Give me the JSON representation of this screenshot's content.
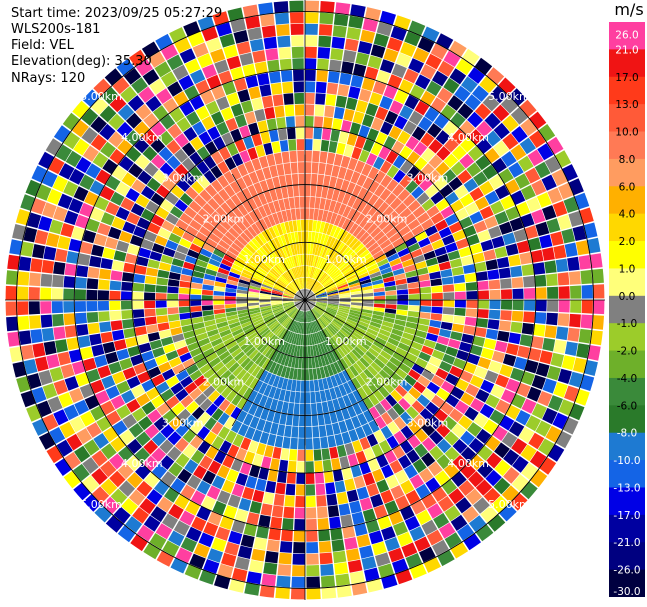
{
  "header": {
    "start_time": "Start time: 2023/09/25 05:27:29",
    "instrument": "WLS200s-181",
    "field": "Field: VEL",
    "elevation": "Elevation(deg): 35.30",
    "nrays": "NRays: 120"
  },
  "colorbar": {
    "unit": "m/s",
    "ticks": [
      "26.0",
      "21.0",
      "17.0",
      "13.0",
      "10.0",
      "8.0",
      "6.0",
      "4.0",
      "2.0",
      "1.0",
      "0.0",
      "-1.0",
      "-2.0",
      "-4.0",
      "-6.0",
      "-8.0",
      "-10.0",
      "-13.0",
      "-17.0",
      "-21.0",
      "-26.0",
      "-30.0"
    ],
    "colors": [
      "#ff3fa0",
      "#f01414",
      "#ff3a1a",
      "#ff5a38",
      "#ff7a55",
      "#ff9c60",
      "#ffb000",
      "#ffd800",
      "#ffff00",
      "#ffff7a",
      "#808080",
      "#9ccc2a",
      "#6eb02a",
      "#3a8a3a",
      "#2a7a2a",
      "#1e7ad2",
      "#1464e6",
      "#0000e6",
      "#0000a0",
      "#000080",
      "#000040"
    ]
  },
  "chart_data": {
    "type": "heatmap",
    "title": "",
    "field": "VEL",
    "unit": "m/s",
    "elevation_deg": 35.3,
    "nrays": 120,
    "range_rings": [
      {
        "label": "1.00km",
        "range_km": 1.0
      },
      {
        "label": "2.00km",
        "range_km": 2.0
      },
      {
        "label": "3.00km",
        "range_km": 3.0
      },
      {
        "label": "4.00km",
        "range_km": 4.0
      },
      {
        "label": "5.00km",
        "range_km": 5.0
      }
    ],
    "max_range_km": 5.2,
    "value_range": [
      -30,
      26
    ],
    "coherent_sectors": [
      {
        "azimuth_deg": [
          290,
          70
        ],
        "range_km": [
          0.2,
          1.4
        ],
        "value": 2.0
      },
      {
        "azimuth_deg": [
          300,
          60
        ],
        "range_km": [
          1.4,
          2.6
        ],
        "value": 9.0
      },
      {
        "azimuth_deg": [
          80,
          100
        ],
        "range_km": [
          0.0,
          1.2
        ],
        "value": 0.0
      },
      {
        "azimuth_deg": [
          260,
          280
        ],
        "range_km": [
          0.0,
          1.2
        ],
        "value": 0.0
      },
      {
        "azimuth_deg": [
          100,
          150
        ],
        "range_km": [
          0.2,
          2.2
        ],
        "value": -2.0
      },
      {
        "azimuth_deg": [
          210,
          260
        ],
        "range_km": [
          0.2,
          2.2
        ],
        "value": -2.0
      },
      {
        "azimuth_deg": [
          150,
          210
        ],
        "range_km": [
          0.3,
          1.5
        ],
        "value": -5.0
      },
      {
        "azimuth_deg": [
          150,
          210
        ],
        "range_km": [
          1.5,
          2.6
        ],
        "value": -9.0
      }
    ],
    "noise_beyond_km": 2.7
  }
}
